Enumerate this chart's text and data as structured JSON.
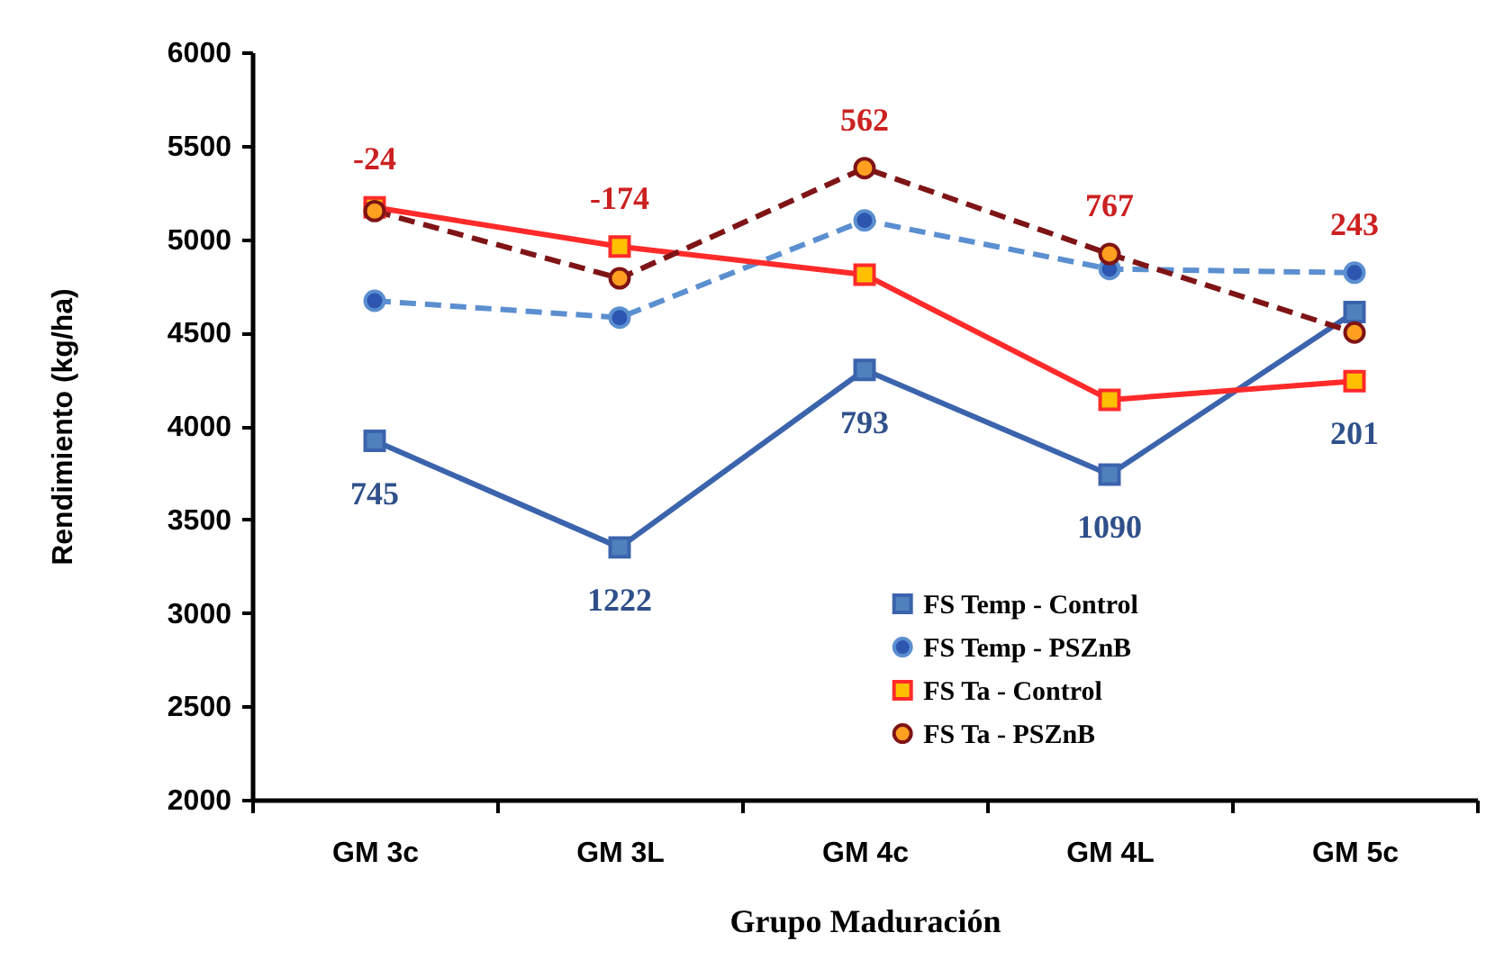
{
  "chart_data": {
    "type": "line",
    "xlabel": "Grupo Maduración",
    "ylabel": "Rendimiento (kg/ha)",
    "categories": [
      "GM 3c",
      "GM 3L",
      "GM 4c",
      "GM 4L",
      "GM 5c"
    ],
    "series": [
      {
        "name": "FS Temp - Control",
        "color": "#3b64ad",
        "marker": "square",
        "line_style": "solid",
        "values": [
          3920,
          3350,
          4300,
          3740,
          4610
        ]
      },
      {
        "name": "FS Temp - PSZnB",
        "color": "#5b8fd0",
        "marker": "circle",
        "line_style": "dashed",
        "values": [
          4670,
          4580,
          5100,
          4840,
          4820
        ]
      },
      {
        "name": "FS Ta - Control",
        "color": "#ff2a2a",
        "marker": "square",
        "line_style": "solid",
        "values": [
          5170,
          4960,
          4810,
          4140,
          4240
        ]
      },
      {
        "name": "FS Ta - PSZnB",
        "color": "#7f1416",
        "marker": "circle",
        "line_style": "dashed",
        "values": [
          5150,
          4790,
          5380,
          4920,
          4500
        ]
      }
    ],
    "ylim": [
      2000,
      6000
    ],
    "yticks": [
      2000,
      2500,
      3000,
      3500,
      4000,
      4500,
      5000,
      5500,
      6000
    ],
    "grid": false,
    "legend": "bottom right",
    "annotations": [
      {
        "text": "-24",
        "x": "GM 3c",
        "y": 5170
      },
      {
        "text": "-174",
        "x": "GM 3L",
        "y": 4960
      },
      {
        "text": "562",
        "x": "GM 4c",
        "y": 5380
      },
      {
        "text": "767",
        "x": "GM 4L",
        "y": 4920
      },
      {
        "text": "243",
        "x": "GM 5c",
        "y": 4820
      },
      {
        "text": "745",
        "x": "GM 3c",
        "y": 3920
      },
      {
        "text": "1222",
        "x": "GM 3L",
        "y": 3350
      },
      {
        "text": "793",
        "x": "GM 4c",
        "y": 4300
      },
      {
        "text": "1090",
        "x": "GM 4L",
        "y": 3740
      },
      {
        "text": "201",
        "x": "GM 5c",
        "y": 4240
      }
    ]
  }
}
